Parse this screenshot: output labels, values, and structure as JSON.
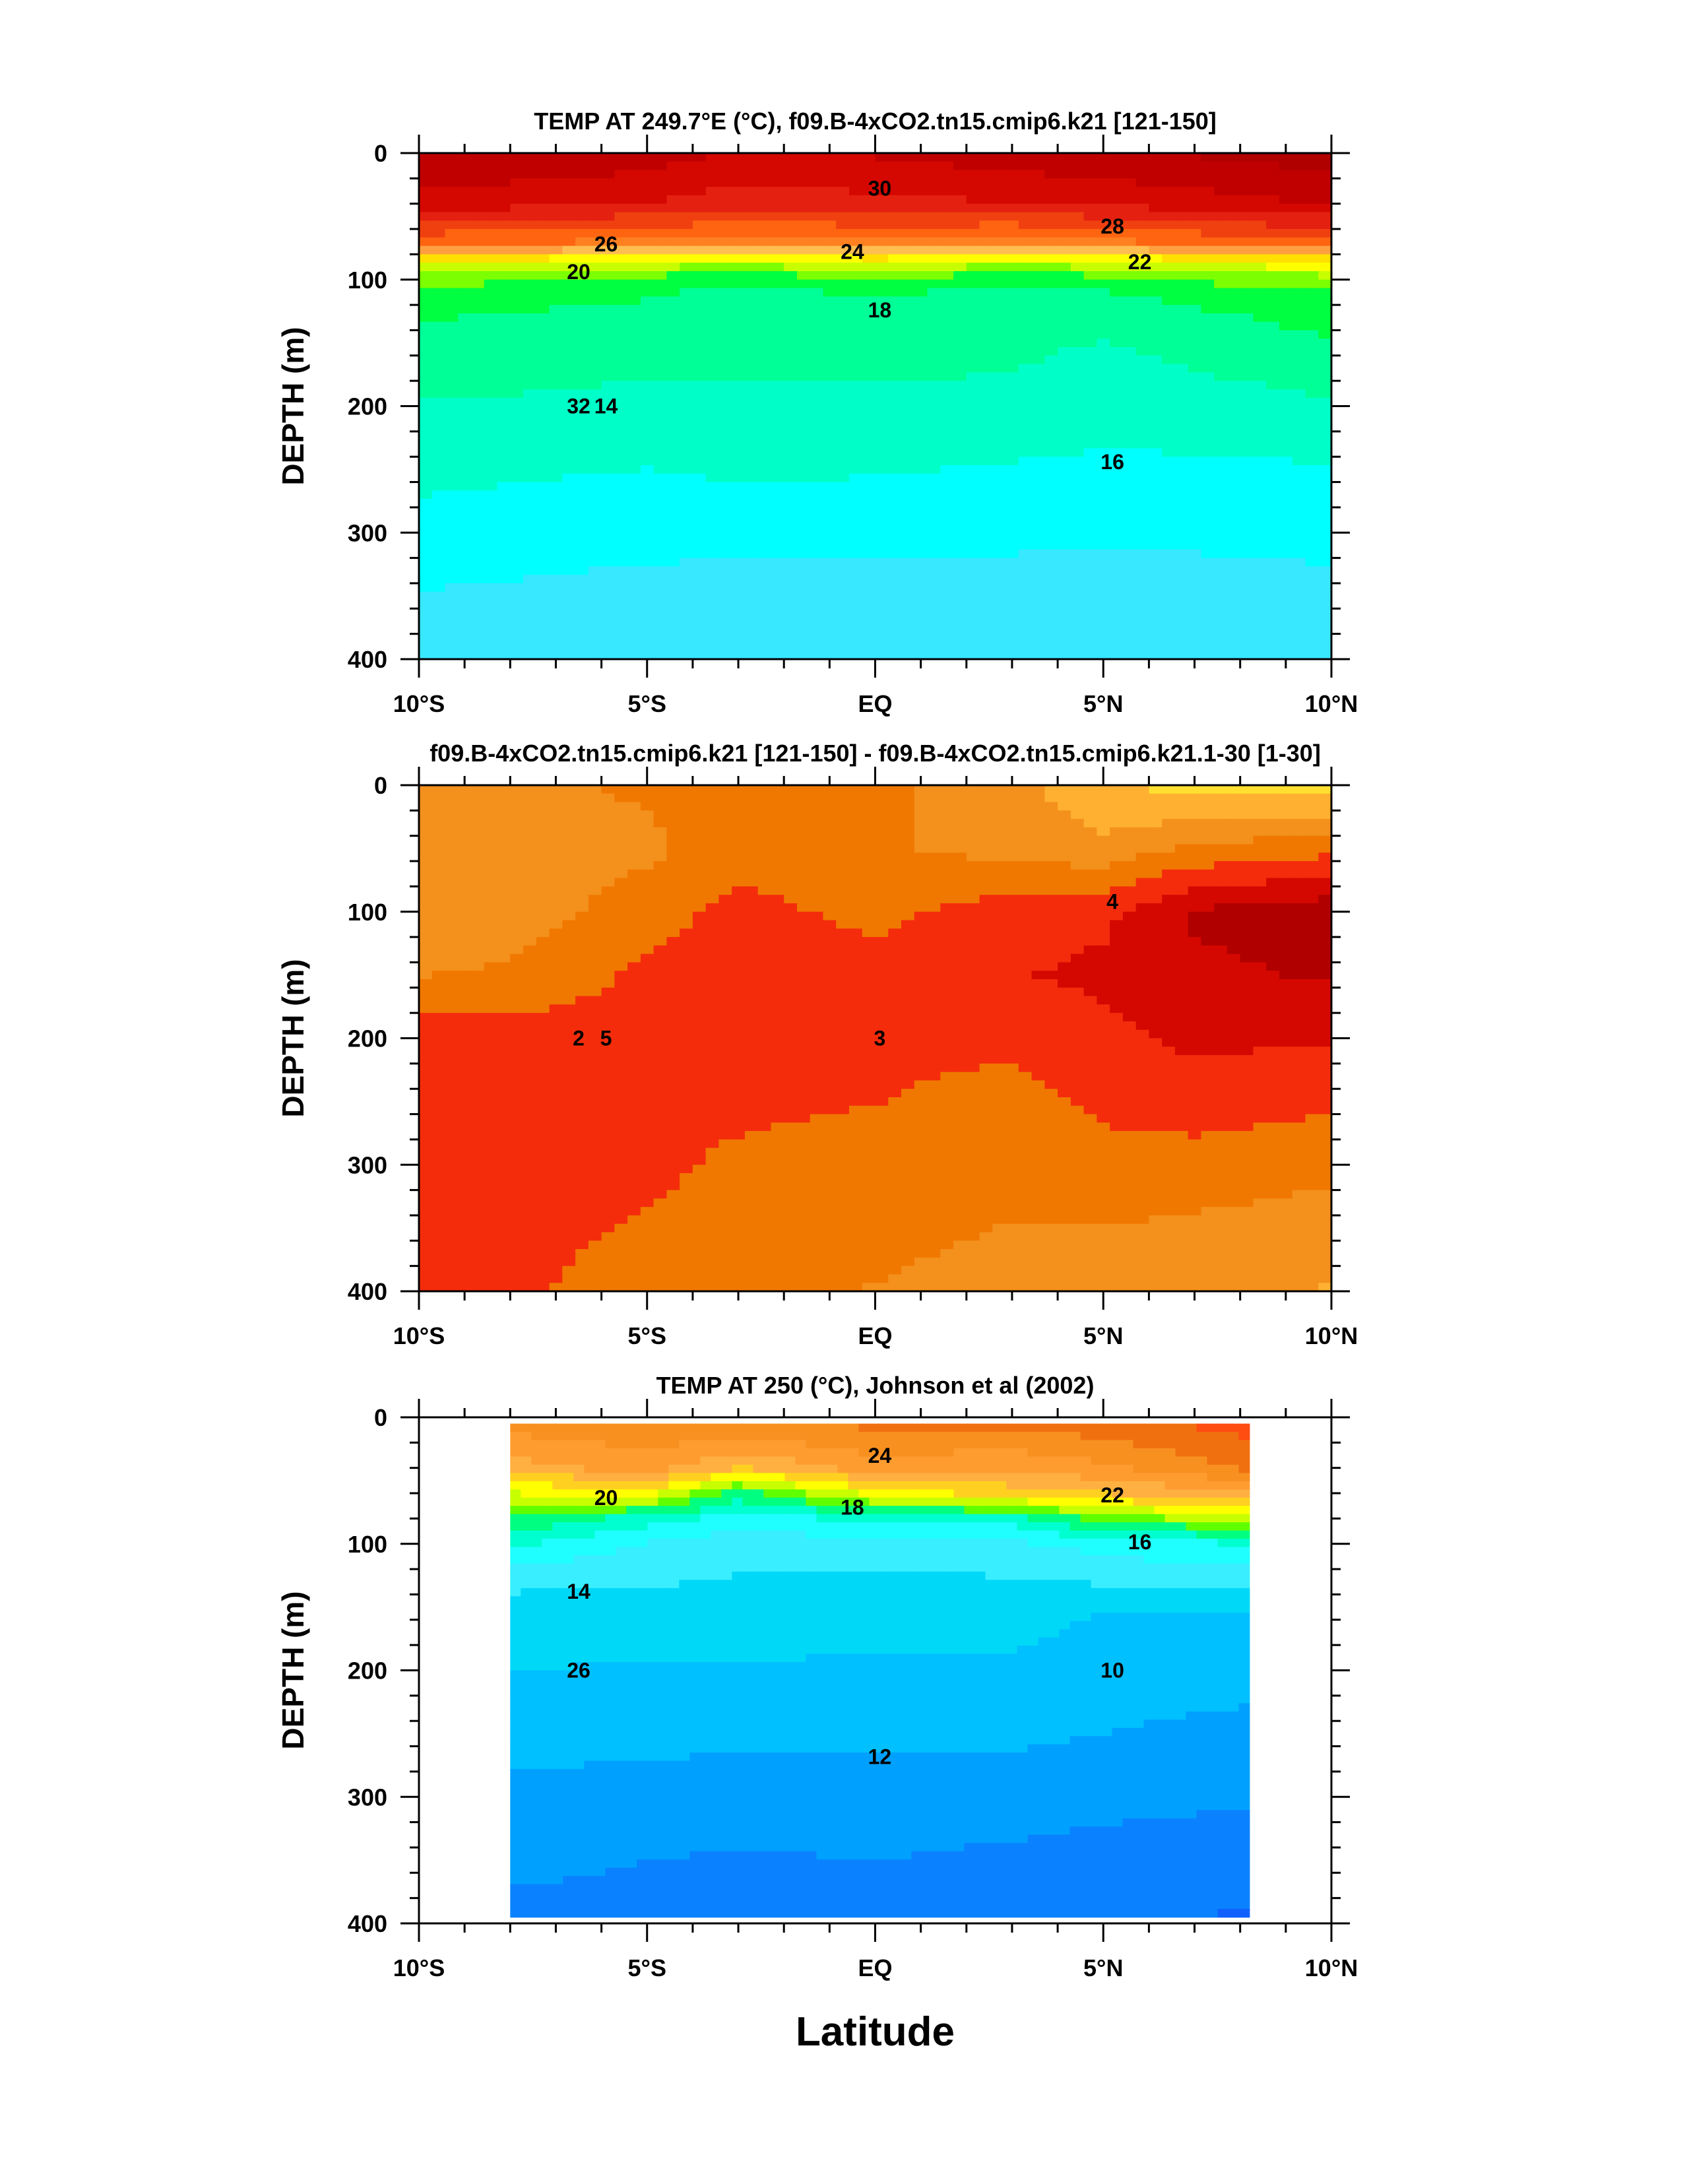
{
  "figure": {
    "xlabel": "Latitude"
  },
  "chart_data": [
    {
      "type": "heatmap",
      "subtype": "filled-contour",
      "title": "TEMP AT 249.7°E (°C), f09.B-4xCO2.tn15.cmip6.k21 [121-150]",
      "ylabel": "DEPTH (m)",
      "x_tick_labels": [
        "10°S",
        "5°S",
        "EQ",
        "5°N",
        "10°N"
      ],
      "x_ticks": [
        -10,
        -5,
        0,
        5,
        10
      ],
      "y_tick_labels": [
        "0",
        "100",
        "200",
        "300",
        "400"
      ],
      "y_ticks": [
        0,
        100,
        200,
        300,
        400
      ],
      "xlim": [
        -10,
        10
      ],
      "ylim": [
        400,
        0
      ],
      "data_xlim": [
        -10,
        10
      ],
      "columns": [
        -10,
        -5,
        -3,
        0,
        3,
        5,
        10
      ],
      "depths": [
        0,
        40,
        70,
        85,
        95,
        110,
        130,
        160,
        200,
        250,
        300,
        350,
        400
      ],
      "values": [
        [
          32.0,
          31.5,
          30.8,
          31.0,
          31.5,
          31.8,
          32.5
        ],
        [
          30.5,
          29.8,
          29.2,
          29.5,
          29.8,
          30.0,
          31.0
        ],
        [
          27.0,
          26.5,
          26.0,
          26.5,
          26.0,
          26.5,
          27.5
        ],
        [
          22.5,
          21.5,
          21.0,
          22.0,
          21.0,
          21.5,
          23.0
        ],
        [
          20.0,
          19.5,
          19.0,
          20.0,
          19.0,
          19.5,
          20.5
        ],
        [
          19.0,
          18.4,
          17.8,
          18.5,
          17.8,
          18.2,
          19.3
        ],
        [
          18.3,
          17.8,
          17.4,
          17.7,
          17.4,
          17.5,
          18.6
        ],
        [
          17.8,
          17.4,
          17.3,
          17.4,
          17.3,
          17.0,
          17.9
        ],
        [
          17.1,
          16.9,
          17.0,
          17.0,
          16.9,
          16.5,
          17.0
        ],
        [
          16.4,
          16.1,
          16.3,
          16.2,
          16.0,
          15.9,
          16.0
        ],
        [
          15.7,
          15.4,
          15.4,
          15.4,
          15.3,
          15.2,
          15.4
        ],
        [
          15.0,
          14.7,
          14.6,
          14.6,
          14.6,
          14.5,
          14.7
        ],
        [
          14.6,
          14.2,
          14.0,
          14.0,
          14.0,
          14.1,
          14.3
        ]
      ],
      "levels_min": 14,
      "levels_max": 33,
      "contour_labels": [
        "32",
        "30",
        "28",
        "26",
        "24",
        "22",
        "20",
        "18",
        "16",
        "14"
      ],
      "colormap": [
        "#38e8ff",
        "#00ffff",
        "#00ffc8",
        "#00ff96",
        "#00ff40",
        "#7cff00",
        "#c8ff00",
        "#ffff00",
        "#ffe000",
        "#ffbe50",
        "#ffa040",
        "#ff8020",
        "#ff6410",
        "#f04010",
        "#e42010",
        "#d40800",
        "#c00000",
        "#b00000"
      ]
    },
    {
      "type": "heatmap",
      "subtype": "filled-contour",
      "title": "f09.B-4xCO2.tn15.cmip6.k21 [121-150] - f09.B-4xCO2.tn15.cmip6.k21.1-30 [1-30]",
      "ylabel": "DEPTH (m)",
      "x_tick_labels": [
        "10°S",
        "5°S",
        "EQ",
        "5°N",
        "10°N"
      ],
      "x_ticks": [
        -10,
        -5,
        0,
        5,
        10
      ],
      "y_tick_labels": [
        "0",
        "100",
        "200",
        "300",
        "400"
      ],
      "y_ticks": [
        0,
        100,
        200,
        300,
        400
      ],
      "xlim": [
        -10,
        10
      ],
      "ylim": [
        400,
        0
      ],
      "data_xlim": [
        -10,
        10
      ],
      "columns": [
        -10,
        -8,
        -5,
        -3,
        0,
        3,
        5,
        7,
        10
      ],
      "depths": [
        0,
        50,
        100,
        150,
        200,
        250,
        300,
        350,
        400
      ],
      "values": [
        [
          3.2,
          3.1,
          3.3,
          3.4,
          3.4,
          2.8,
          2.2,
          1.8,
          1.8
        ],
        [
          2.8,
          2.8,
          3.1,
          3.5,
          3.3,
          3.0,
          2.8,
          3.3,
          3.6
        ],
        [
          2.8,
          2.9,
          3.5,
          4.0,
          3.6,
          4.1,
          4.2,
          5.0,
          5.3
        ],
        [
          3.2,
          3.3,
          3.9,
          4.1,
          4.1,
          4.3,
          4.5,
          4.8,
          5.0
        ],
        [
          4.1,
          4.1,
          4.0,
          4.1,
          3.9,
          3.9,
          4.2,
          4.5,
          4.4
        ],
        [
          4.2,
          4.1,
          4.1,
          4.0,
          3.8,
          3.6,
          3.9,
          4.0,
          3.9
        ],
        [
          4.3,
          4.1,
          4.0,
          3.6,
          3.4,
          3.4,
          3.6,
          3.6,
          3.4
        ],
        [
          4.2,
          4.0,
          3.7,
          3.4,
          3.3,
          3.2,
          3.2,
          3.1,
          2.9
        ],
        [
          4.1,
          3.9,
          3.5,
          3.3,
          3.2,
          3.1,
          3.0,
          2.8,
          2.6
        ]
      ],
      "levels_min": 1.5,
      "levels_max": 5.5,
      "contour_labels": [
        "2",
        "3",
        "4",
        "5"
      ],
      "colormap": [
        "#ffe030",
        "#ffb030",
        "#f4901c",
        "#f07800",
        "#f42c0c",
        "#d40800",
        "#b00000"
      ]
    },
    {
      "type": "heatmap",
      "subtype": "filled-contour",
      "title": "TEMP AT 250 (°C), Johnson et al (2002)",
      "ylabel": "DEPTH (m)",
      "x_tick_labels": [
        "10°S",
        "5°S",
        "EQ",
        "5°N",
        "10°N"
      ],
      "x_ticks": [
        -10,
        -5,
        0,
        5,
        10
      ],
      "y_tick_labels": [
        "0",
        "100",
        "200",
        "300",
        "400"
      ],
      "y_ticks": [
        0,
        100,
        200,
        300,
        400
      ],
      "xlim": [
        -10,
        10
      ],
      "ylim": [
        400,
        0
      ],
      "data_xlim": [
        -8,
        8.2
      ],
      "columns": [
        -8,
        -5,
        -3,
        0,
        3,
        5,
        8.2
      ],
      "depths": [
        5,
        40,
        60,
        80,
        100,
        130,
        160,
        200,
        250,
        300,
        350,
        395
      ],
      "values": [
        [
          24.5,
          24.7,
          25.0,
          25.2,
          25.3,
          25.6,
          26.4
        ],
        [
          22.5,
          23.6,
          22.0,
          23.5,
          23.2,
          23.8,
          25.2
        ],
        [
          20.0,
          20.5,
          17.5,
          20.5,
          21.5,
          22.0,
          23.0
        ],
        [
          18.0,
          16.5,
          15.6,
          16.2,
          16.5,
          18.5,
          19.5
        ],
        [
          16.2,
          14.9,
          14.4,
          14.6,
          14.8,
          15.4,
          16.0
        ],
        [
          14.2,
          14.1,
          13.9,
          13.7,
          13.9,
          14.1,
          14.3
        ],
        [
          13.5,
          13.5,
          13.6,
          13.3,
          13.4,
          12.8,
          12.8
        ],
        [
          13.0,
          12.9,
          12.9,
          12.8,
          12.8,
          12.5,
          12.4
        ],
        [
          12.4,
          12.3,
          12.2,
          12.2,
          12.2,
          12.0,
          11.7
        ],
        [
          11.7,
          11.6,
          11.5,
          11.6,
          11.5,
          11.3,
          11.1
        ],
        [
          11.2,
          11.0,
          10.9,
          11.0,
          10.8,
          10.6,
          10.5
        ],
        [
          10.8,
          10.7,
          10.5,
          10.4,
          10.4,
          10.2,
          9.9
        ]
      ],
      "levels_min": 9,
      "levels_max": 27,
      "contour_labels": [
        "26",
        "24",
        "22",
        "20",
        "18",
        "16",
        "14",
        "12",
        "10"
      ],
      "colormap": [
        "#1060ff",
        "#0a82ff",
        "#00a0ff",
        "#00c0ff",
        "#00d8f8",
        "#38eeff",
        "#20ffff",
        "#00ffd0",
        "#00ff80",
        "#60ff00",
        "#c8ff00",
        "#ffff00",
        "#ffd020",
        "#ffb040",
        "#ff9c30",
        "#f89020",
        "#f07010",
        "#ff4c10"
      ]
    }
  ]
}
